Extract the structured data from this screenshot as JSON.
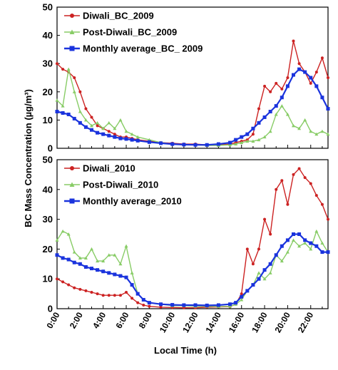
{
  "chart_data": {
    "type": "line",
    "xlabel": "Local Time (h)",
    "ylabel": "BC Mass Concentration (µg/m³)",
    "xlim": [
      0,
      23.5
    ],
    "xticks": [
      "0:00",
      "2:00",
      "4:00",
      "6:00",
      "8:00",
      "10:00",
      "12:00",
      "14:00",
      "16:00",
      "18:00",
      "20:00",
      "22:00"
    ],
    "panels": [
      {
        "ylim": [
          0,
          50
        ],
        "yticks": [
          0,
          10,
          20,
          30,
          40,
          50
        ],
        "legend_position": "top-left",
        "series": [
          {
            "name": "Diwali_BC_2009",
            "color": "#cc2222",
            "marker": "circle",
            "points": [
              [
                0,
                30
              ],
              [
                0.5,
                28
              ],
              [
                1,
                27
              ],
              [
                1.5,
                25
              ],
              [
                2,
                20
              ],
              [
                2.5,
                14
              ],
              [
                3,
                11
              ],
              [
                3.5,
                8
              ],
              [
                4,
                7
              ],
              [
                4.5,
                6
              ],
              [
                5,
                5
              ],
              [
                5.5,
                4
              ],
              [
                6,
                4
              ],
              [
                6.5,
                3.5
              ],
              [
                7,
                3
              ],
              [
                8,
                2.5
              ],
              [
                9,
                2
              ],
              [
                10,
                1.8
              ],
              [
                11,
                1.5
              ],
              [
                12,
                1.5
              ],
              [
                13,
                1.2
              ],
              [
                14,
                1.2
              ],
              [
                15,
                1.5
              ],
              [
                15.5,
                2
              ],
              [
                16,
                2.5
              ],
              [
                16.5,
                3
              ],
              [
                17,
                5
              ],
              [
                17.5,
                14
              ],
              [
                18,
                22
              ],
              [
                18.5,
                20
              ],
              [
                19,
                23
              ],
              [
                19.5,
                21
              ],
              [
                20,
                25
              ],
              [
                20.5,
                38
              ],
              [
                21,
                30
              ],
              [
                21.5,
                27
              ],
              [
                22,
                23
              ],
              [
                22.5,
                27
              ],
              [
                23,
                32
              ],
              [
                23.5,
                25
              ]
            ]
          },
          {
            "name": "Post-Diwali_BC_2009",
            "color": "#88cc66",
            "marker": "triangle",
            "points": [
              [
                0,
                17
              ],
              [
                0.5,
                15
              ],
              [
                1,
                28
              ],
              [
                1.5,
                20
              ],
              [
                2,
                13
              ],
              [
                2.5,
                10
              ],
              [
                3,
                8
              ],
              [
                3.5,
                9
              ],
              [
                4,
                7
              ],
              [
                4.5,
                9
              ],
              [
                5,
                7
              ],
              [
                5.5,
                10
              ],
              [
                6,
                6
              ],
              [
                6.5,
                5
              ],
              [
                7,
                4
              ],
              [
                8,
                3
              ],
              [
                9,
                2
              ],
              [
                10,
                1.5
              ],
              [
                11,
                1.2
              ],
              [
                12,
                1.2
              ],
              [
                13,
                1.0
              ],
              [
                14,
                1.0
              ],
              [
                15,
                1.2
              ],
              [
                15.5,
                1.5
              ],
              [
                16,
                2
              ],
              [
                16.5,
                2.5
              ],
              [
                17,
                2.5
              ],
              [
                17.5,
                3
              ],
              [
                18,
                4
              ],
              [
                18.5,
                6
              ],
              [
                19,
                12
              ],
              [
                19.5,
                15
              ],
              [
                20,
                12
              ],
              [
                20.5,
                8
              ],
              [
                21,
                7
              ],
              [
                21.5,
                10
              ],
              [
                22,
                6
              ],
              [
                22.5,
                5
              ],
              [
                23,
                6
              ],
              [
                23.5,
                5
              ]
            ]
          },
          {
            "name": "Monthly average_BC_ 2009",
            "color": "#1a33dd",
            "marker": "square",
            "points": [
              [
                0,
                13
              ],
              [
                0.5,
                12.5
              ],
              [
                1,
                12
              ],
              [
                1.5,
                10.5
              ],
              [
                2,
                9
              ],
              [
                2.5,
                7.5
              ],
              [
                3,
                6.5
              ],
              [
                3.5,
                5.5
              ],
              [
                4,
                5
              ],
              [
                4.5,
                4.5
              ],
              [
                5,
                4
              ],
              [
                5.5,
                3.5
              ],
              [
                6,
                3.3
              ],
              [
                6.5,
                3
              ],
              [
                7,
                2.7
              ],
              [
                8,
                2.2
              ],
              [
                9,
                1.8
              ],
              [
                10,
                1.5
              ],
              [
                11,
                1.3
              ],
              [
                12,
                1.2
              ],
              [
                13,
                1.2
              ],
              [
                14,
                1.5
              ],
              [
                15,
                2
              ],
              [
                15.5,
                3
              ],
              [
                16,
                4
              ],
              [
                16.5,
                5
              ],
              [
                17,
                7
              ],
              [
                17.5,
                9
              ],
              [
                18,
                11
              ],
              [
                18.5,
                13
              ],
              [
                19,
                15
              ],
              [
                19.5,
                18
              ],
              [
                20,
                22
              ],
              [
                20.5,
                26
              ],
              [
                21,
                28
              ],
              [
                21.5,
                27
              ],
              [
                22,
                25
              ],
              [
                22.5,
                22
              ],
              [
                23,
                18
              ],
              [
                23.5,
                14
              ]
            ]
          }
        ]
      },
      {
        "ylim": [
          0,
          50
        ],
        "yticks": [
          0,
          10,
          20,
          30,
          40,
          50
        ],
        "legend_position": "top-left",
        "series": [
          {
            "name": "Diwali_2010",
            "color": "#cc2222",
            "marker": "circle",
            "points": [
              [
                0,
                10
              ],
              [
                0.5,
                9
              ],
              [
                1,
                8
              ],
              [
                1.5,
                7
              ],
              [
                2,
                6.5
              ],
              [
                2.5,
                6
              ],
              [
                3,
                5.5
              ],
              [
                3.5,
                5
              ],
              [
                4,
                4.5
              ],
              [
                4.5,
                4.5
              ],
              [
                5,
                4.5
              ],
              [
                5.5,
                4.5
              ],
              [
                6,
                5.5
              ],
              [
                6.5,
                3.5
              ],
              [
                7,
                2
              ],
              [
                7.5,
                1.2
              ],
              [
                8,
                0.8
              ],
              [
                9,
                0.5
              ],
              [
                10,
                0.4
              ],
              [
                11,
                0.3
              ],
              [
                12,
                0.3
              ],
              [
                13,
                0.5
              ],
              [
                14,
                0.6
              ],
              [
                15,
                0.7
              ],
              [
                15.5,
                1.5
              ],
              [
                16,
                5
              ],
              [
                16.5,
                20
              ],
              [
                17,
                15
              ],
              [
                17.5,
                20
              ],
              [
                18,
                30
              ],
              [
                18.5,
                25
              ],
              [
                19,
                40
              ],
              [
                19.5,
                43
              ],
              [
                20,
                35
              ],
              [
                20.5,
                45
              ],
              [
                21,
                47
              ],
              [
                21.5,
                44
              ],
              [
                22,
                42
              ],
              [
                22.5,
                38
              ],
              [
                23,
                35
              ],
              [
                23.5,
                30
              ]
            ]
          },
          {
            "name": "Post-Diwali_2010",
            "color": "#88cc66",
            "marker": "triangle",
            "points": [
              [
                0,
                23
              ],
              [
                0.5,
                26
              ],
              [
                1,
                25
              ],
              [
                1.5,
                19
              ],
              [
                2,
                17
              ],
              [
                2.5,
                17
              ],
              [
                3,
                20
              ],
              [
                3.5,
                16
              ],
              [
                4,
                16
              ],
              [
                4.5,
                18
              ],
              [
                5,
                18
              ],
              [
                5.5,
                15
              ],
              [
                6,
                21
              ],
              [
                6.5,
                12
              ],
              [
                7,
                5
              ],
              [
                7.5,
                3
              ],
              [
                8,
                2
              ],
              [
                9,
                1.5
              ],
              [
                10,
                1
              ],
              [
                11,
                1
              ],
              [
                12,
                0.8
              ],
              [
                13,
                0.8
              ],
              [
                14,
                0.7
              ],
              [
                15,
                0.8
              ],
              [
                15.5,
                1.5
              ],
              [
                16,
                3
              ],
              [
                16.5,
                6
              ],
              [
                17,
                8
              ],
              [
                17.5,
                12
              ],
              [
                18,
                10
              ],
              [
                18.5,
                12
              ],
              [
                19,
                18
              ],
              [
                19.5,
                16
              ],
              [
                20,
                19
              ],
              [
                20.5,
                23
              ],
              [
                21,
                21
              ],
              [
                21.5,
                22
              ],
              [
                22,
                20
              ],
              [
                22.5,
                26
              ],
              [
                23,
                22
              ],
              [
                23.5,
                19
              ]
            ]
          },
          {
            "name": "Monthly average_2010",
            "color": "#1a33dd",
            "marker": "square",
            "points": [
              [
                0,
                18
              ],
              [
                0.5,
                17
              ],
              [
                1,
                16.5
              ],
              [
                1.5,
                15.5
              ],
              [
                2,
                15
              ],
              [
                2.5,
                14
              ],
              [
                3,
                13.5
              ],
              [
                3.5,
                13
              ],
              [
                4,
                12.5
              ],
              [
                4.5,
                12
              ],
              [
                5,
                11.5
              ],
              [
                5.5,
                11
              ],
              [
                6,
                10.5
              ],
              [
                6.5,
                8
              ],
              [
                7,
                5
              ],
              [
                7.5,
                3
              ],
              [
                8,
                2
              ],
              [
                9,
                1.5
              ],
              [
                10,
                1.3
              ],
              [
                11,
                1.2
              ],
              [
                12,
                1.2
              ],
              [
                13,
                1.1
              ],
              [
                14,
                1.2
              ],
              [
                15,
                1.5
              ],
              [
                15.5,
                2
              ],
              [
                16,
                4
              ],
              [
                16.5,
                6
              ],
              [
                17,
                8
              ],
              [
                17.5,
                10
              ],
              [
                18,
                13
              ],
              [
                18.5,
                15
              ],
              [
                19,
                18
              ],
              [
                19.5,
                21
              ],
              [
                20,
                23
              ],
              [
                20.5,
                25
              ],
              [
                21,
                25
              ],
              [
                21.5,
                23
              ],
              [
                22,
                22
              ],
              [
                22.5,
                21
              ],
              [
                23,
                19
              ],
              [
                23.5,
                19
              ]
            ]
          }
        ]
      }
    ]
  }
}
